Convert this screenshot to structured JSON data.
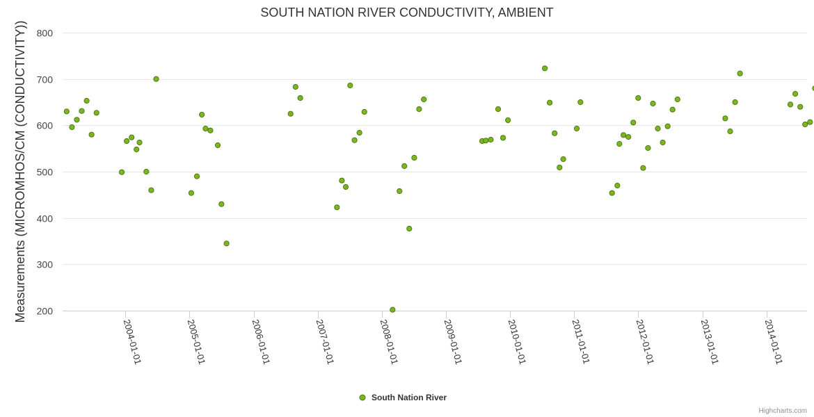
{
  "chart_data": {
    "type": "scatter",
    "title": "SOUTH NATION RIVER CONDUCTIVITY, AMBIENT",
    "ylabel": "Measurements (MICROMHOS/CM (CONDUCTIVITY))",
    "xlabel": "",
    "ylim": [
      200,
      800
    ],
    "yticks": [
      200,
      300,
      400,
      500,
      600,
      700,
      800
    ],
    "xlim": [
      "2003-01-09",
      "2014-08-20"
    ],
    "xticks": [
      "2004-01-01",
      "2005-01-01",
      "2006-01-01",
      "2007-01-01",
      "2008-01-01",
      "2009-01-01",
      "2010-01-01",
      "2011-01-01",
      "2012-01-01",
      "2013-01-01",
      "2014-01-01"
    ],
    "grid": true,
    "legend": "bottom-center",
    "color": "#7cb524",
    "border_color": "#4f7a0e",
    "series": [
      {
        "name": "South Nation River",
        "points": [
          {
            "x": "2003-02-01",
            "y": 630
          },
          {
            "x": "2003-03-03",
            "y": 596
          },
          {
            "x": "2003-03-31",
            "y": 612
          },
          {
            "x": "2003-04-28",
            "y": 631
          },
          {
            "x": "2003-05-26",
            "y": 653
          },
          {
            "x": "2003-06-23",
            "y": 580
          },
          {
            "x": "2003-07-21",
            "y": 627
          },
          {
            "x": "2003-12-12",
            "y": 499
          },
          {
            "x": "2004-01-09",
            "y": 566
          },
          {
            "x": "2004-02-06",
            "y": 574
          },
          {
            "x": "2004-03-05",
            "y": 548
          },
          {
            "x": "2004-03-22",
            "y": 563
          },
          {
            "x": "2004-04-30",
            "y": 500
          },
          {
            "x": "2004-05-28",
            "y": 460
          },
          {
            "x": "2004-06-25",
            "y": 700
          },
          {
            "x": "2005-01-11",
            "y": 454
          },
          {
            "x": "2005-02-12",
            "y": 490
          },
          {
            "x": "2005-03-12",
            "y": 623
          },
          {
            "x": "2005-04-02",
            "y": 593
          },
          {
            "x": "2005-04-30",
            "y": 589
          },
          {
            "x": "2005-06-11",
            "y": 557
          },
          {
            "x": "2005-07-02",
            "y": 430
          },
          {
            "x": "2005-07-31",
            "y": 345
          },
          {
            "x": "2006-07-31",
            "y": 625
          },
          {
            "x": "2006-08-28",
            "y": 683
          },
          {
            "x": "2006-09-24",
            "y": 659
          },
          {
            "x": "2007-04-21",
            "y": 423
          },
          {
            "x": "2007-05-19",
            "y": 481
          },
          {
            "x": "2007-06-10",
            "y": 467
          },
          {
            "x": "2007-07-05",
            "y": 686
          },
          {
            "x": "2007-07-30",
            "y": 568
          },
          {
            "x": "2007-08-27",
            "y": 584
          },
          {
            "x": "2007-09-24",
            "y": 629
          },
          {
            "x": "2008-03-03",
            "y": 202
          },
          {
            "x": "2008-04-11",
            "y": 458
          },
          {
            "x": "2008-05-09",
            "y": 512
          },
          {
            "x": "2008-06-06",
            "y": 377
          },
          {
            "x": "2008-07-04",
            "y": 530
          },
          {
            "x": "2008-08-01",
            "y": 635
          },
          {
            "x": "2008-08-28",
            "y": 656
          },
          {
            "x": "2009-07-26",
            "y": 566
          },
          {
            "x": "2009-08-16",
            "y": 567
          },
          {
            "x": "2009-09-13",
            "y": 569
          },
          {
            "x": "2009-10-25",
            "y": 635
          },
          {
            "x": "2009-11-22",
            "y": 573
          },
          {
            "x": "2009-12-20",
            "y": 611
          },
          {
            "x": "2010-07-18",
            "y": 723
          },
          {
            "x": "2010-08-15",
            "y": 649
          },
          {
            "x": "2010-09-12",
            "y": 583
          },
          {
            "x": "2010-10-10",
            "y": 509
          },
          {
            "x": "2010-10-31",
            "y": 527
          },
          {
            "x": "2011-01-16",
            "y": 593
          },
          {
            "x": "2011-02-06",
            "y": 650
          },
          {
            "x": "2011-08-05",
            "y": 454
          },
          {
            "x": "2011-09-04",
            "y": 470
          },
          {
            "x": "2011-09-16",
            "y": 560
          },
          {
            "x": "2011-10-09",
            "y": 579
          },
          {
            "x": "2011-11-06",
            "y": 575
          },
          {
            "x": "2011-12-04",
            "y": 606
          },
          {
            "x": "2012-01-01",
            "y": 659
          },
          {
            "x": "2012-01-29",
            "y": 508
          },
          {
            "x": "2012-02-26",
            "y": 551
          },
          {
            "x": "2012-03-25",
            "y": 647
          },
          {
            "x": "2012-04-22",
            "y": 593
          },
          {
            "x": "2012-05-20",
            "y": 563
          },
          {
            "x": "2012-06-17",
            "y": 598
          },
          {
            "x": "2012-07-15",
            "y": 634
          },
          {
            "x": "2012-08-12",
            "y": 656
          },
          {
            "x": "2013-05-11",
            "y": 615
          },
          {
            "x": "2013-06-08",
            "y": 587
          },
          {
            "x": "2013-07-06",
            "y": 650
          },
          {
            "x": "2013-08-03",
            "y": 712
          },
          {
            "x": "2014-05-17",
            "y": 645
          },
          {
            "x": "2014-06-14",
            "y": 668
          },
          {
            "x": "2014-07-12",
            "y": 640
          },
          {
            "x": "2014-08-09",
            "y": 602
          },
          {
            "x": "2014-09-06",
            "y": 607
          },
          {
            "x": "2014-10-04",
            "y": 680
          }
        ]
      }
    ]
  },
  "legend": {
    "label": "South Nation River"
  },
  "credits": "Highcharts.com"
}
